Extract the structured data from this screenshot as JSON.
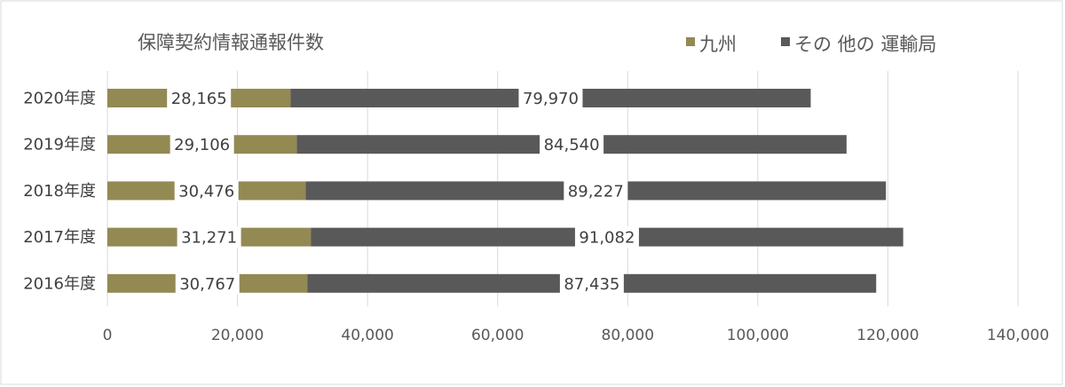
{
  "chart_data": {
    "type": "bar",
    "orientation": "horizontal",
    "stacked": true,
    "title": "保障契約情報通報件数",
    "categories": [
      "2020年度",
      "2019年度",
      "2018年度",
      "2017年度",
      "2016年度"
    ],
    "series": [
      {
        "name": "九州",
        "color": "#938953",
        "values": [
          28165,
          29106,
          30476,
          31271,
          30767
        ]
      },
      {
        "name": "その 他の 運輸局",
        "color": "#595959",
        "values": [
          79970,
          84540,
          89227,
          91082,
          87435
        ]
      }
    ],
    "data_labels": [
      [
        "28,165",
        "29,106",
        "30,476",
        "31,271",
        "30,767"
      ],
      [
        "79,970",
        "84,540",
        "89,227",
        "91,082",
        "87,435"
      ]
    ],
    "xlim": [
      0,
      140000
    ],
    "x_ticks": [
      0,
      20000,
      40000,
      60000,
      80000,
      100000,
      120000,
      140000
    ],
    "x_tick_labels": [
      "0",
      "20,000",
      "40,000",
      "60,000",
      "80,000",
      "100,000",
      "120,000",
      "140,000"
    ],
    "grid": true,
    "legend_position": "top-right",
    "xlabel": "",
    "ylabel": ""
  }
}
